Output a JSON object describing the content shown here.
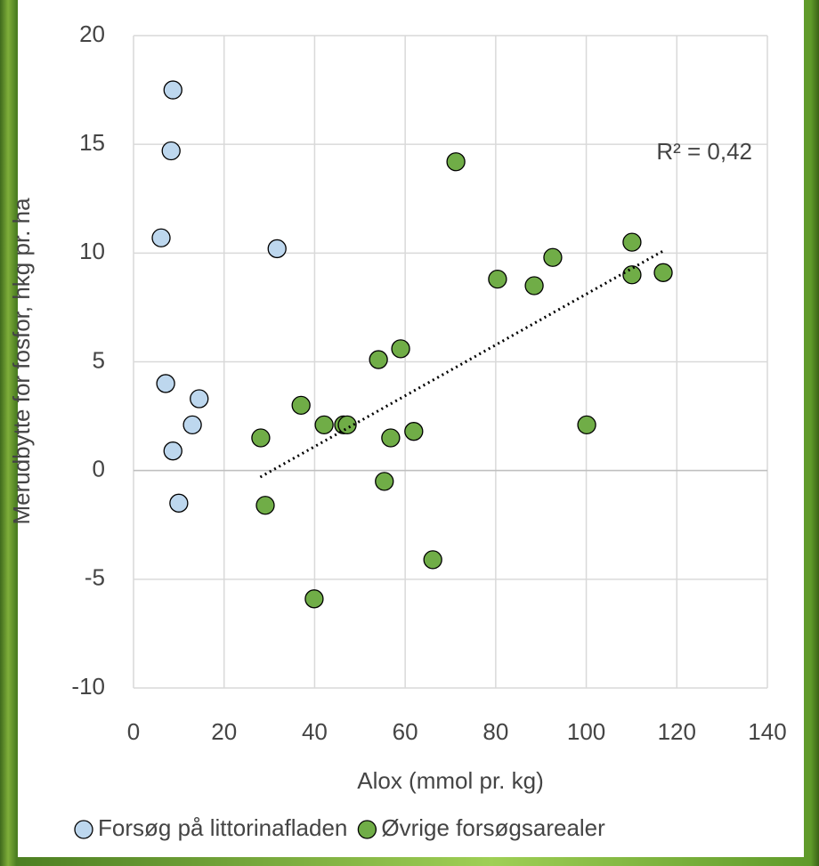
{
  "chart_data": {
    "type": "scatter",
    "x_label": "Alox (mmol pr. kg)",
    "y_label": "Merudbytte for fosfor, hkg pr. ha",
    "annotation": "R² = 0,42",
    "xlim": [
      0,
      140
    ],
    "xticks": [
      0,
      20,
      40,
      60,
      80,
      100,
      120,
      140
    ],
    "ylim": [
      -10,
      20
    ],
    "yticks": [
      -10,
      -5,
      0,
      5,
      10,
      15,
      20
    ],
    "grid": true,
    "legend": "bottom",
    "series": [
      {
        "name": "Forsøg på littorinafladen",
        "color": "#bdd7ee",
        "x": [
          8.7,
          8.3,
          6.1,
          31.7,
          7.1,
          14.5,
          13.0,
          8.7,
          10.0
        ],
        "values": [
          17.5,
          14.7,
          10.7,
          10.2,
          4.0,
          3.3,
          2.1,
          0.9,
          -1.5
        ]
      },
      {
        "name": "Øvrige forsøgsarealer",
        "color": "#70ad47",
        "x": [
          71.2,
          110.1,
          92.6,
          80.4,
          88.5,
          110.1,
          117.0,
          59.0,
          54.1,
          37.0,
          42.1,
          46.4,
          47.2,
          61.9,
          56.8,
          28.1,
          100.1,
          55.4,
          29.1,
          66.1,
          39.9
        ],
        "values": [
          14.2,
          10.5,
          9.8,
          8.8,
          8.5,
          9.0,
          9.1,
          5.6,
          5.1,
          3.0,
          2.1,
          2.1,
          2.1,
          1.8,
          1.5,
          1.5,
          2.1,
          -0.5,
          -1.6,
          -4.1,
          -5.9
        ]
      }
    ],
    "trendline": {
      "x": [
        28,
        117
      ],
      "y": [
        -0.3,
        10.1
      ]
    }
  }
}
